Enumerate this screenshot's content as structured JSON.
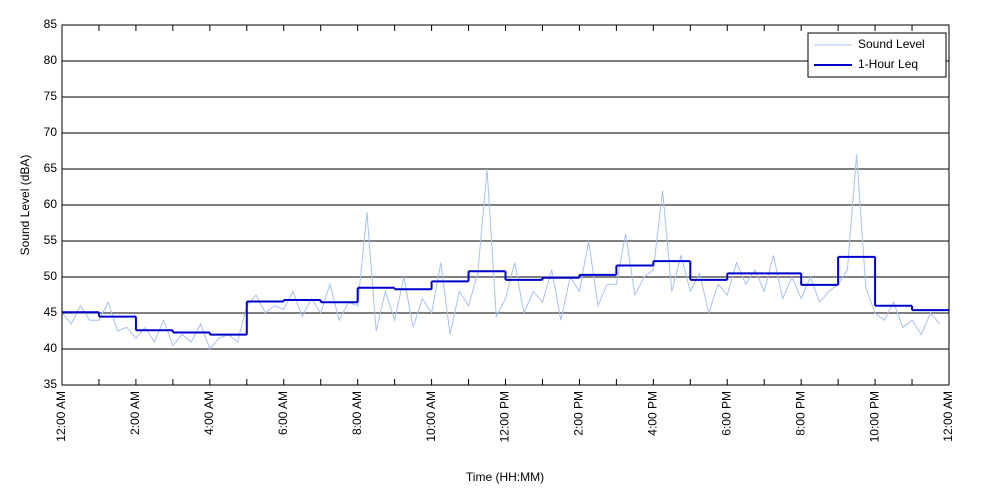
{
  "chart_data": {
    "type": "line",
    "xlabel": "Time (HH:MM)",
    "ylabel": "Sound Level (dBA)",
    "xlim": [
      0,
      24
    ],
    "ylim": [
      35,
      85
    ],
    "xticks": [
      {
        "value": 0,
        "label": "12:00 AM"
      },
      {
        "value": 2,
        "label": "2:00 AM"
      },
      {
        "value": 4,
        "label": "4:00 AM"
      },
      {
        "value": 6,
        "label": "6:00 AM"
      },
      {
        "value": 8,
        "label": "8:00 AM"
      },
      {
        "value": 10,
        "label": "10:00 AM"
      },
      {
        "value": 12,
        "label": "12:00 PM"
      },
      {
        "value": 14,
        "label": "2:00 PM"
      },
      {
        "value": 16,
        "label": "4:00 PM"
      },
      {
        "value": 18,
        "label": "6:00 PM"
      },
      {
        "value": 20,
        "label": "8:00 PM"
      },
      {
        "value": 22,
        "label": "10:00 PM"
      },
      {
        "value": 24,
        "label": "12:00 AM"
      }
    ],
    "xminorticks": [
      1,
      3,
      5,
      7,
      9,
      11,
      13,
      15,
      17,
      19,
      21,
      23
    ],
    "yticks": [
      35,
      40,
      45,
      50,
      55,
      60,
      65,
      70,
      75,
      80,
      85
    ],
    "grid": true,
    "legend": "upper right",
    "series": [
      {
        "name": "Sound Level",
        "color": "#a9c1f2",
        "style": "line",
        "x": [
          0,
          0.25,
          0.5,
          0.75,
          1,
          1.25,
          1.5,
          1.75,
          2,
          2.25,
          2.5,
          2.75,
          3,
          3.25,
          3.5,
          3.75,
          4,
          4.25,
          4.5,
          4.75,
          5,
          5.25,
          5.5,
          5.75,
          6,
          6.25,
          6.5,
          6.75,
          7,
          7.25,
          7.5,
          7.75,
          8,
          8.25,
          8.5,
          8.75,
          9,
          9.25,
          9.5,
          9.75,
          10,
          10.25,
          10.5,
          10.75,
          11,
          11.25,
          11.5,
          11.75,
          12,
          12.25,
          12.5,
          12.75,
          13,
          13.25,
          13.5,
          13.75,
          14,
          14.25,
          14.5,
          14.75,
          15,
          15.25,
          15.5,
          15.75,
          16,
          16.25,
          16.5,
          16.75,
          17,
          17.25,
          17.5,
          17.75,
          18,
          18.25,
          18.5,
          18.75,
          19,
          19.25,
          19.5,
          19.75,
          20,
          20.25,
          20.5,
          20.75,
          21,
          21.25,
          21.5,
          21.75,
          22,
          22.25,
          22.5,
          22.75,
          23,
          23.25,
          23.5,
          23.75
        ],
        "values": [
          45,
          43.5,
          46,
          44,
          44,
          46.5,
          42.5,
          43,
          41.5,
          43,
          41,
          44,
          40.5,
          42,
          41,
          43.5,
          40,
          41.5,
          42,
          41,
          46,
          47.5,
          45,
          46,
          45.5,
          48,
          44.5,
          47,
          45,
          49,
          44,
          46.5,
          46,
          59,
          42.5,
          48,
          44,
          50,
          43,
          47,
          45,
          52,
          42,
          48,
          46,
          50.5,
          65,
          44.5,
          47,
          52,
          45,
          48,
          46.5,
          51,
          44,
          50,
          48,
          55,
          46,
          49,
          49,
          56,
          47.5,
          50,
          51,
          62,
          48,
          53,
          48,
          50.5,
          45,
          49,
          47.5,
          52,
          49,
          51,
          48,
          53,
          47,
          50,
          47,
          50,
          46.5,
          48,
          49,
          51,
          67,
          48.5,
          45,
          44,
          46.5,
          43,
          44,
          42,
          45,
          43.5
        ]
      },
      {
        "name": "1-Hour Leq",
        "color": "#0000cc",
        "style": "step",
        "x": [
          0,
          1,
          2,
          3,
          4,
          5,
          6,
          7,
          8,
          9,
          10,
          11,
          12,
          13,
          14,
          15,
          16,
          17,
          18,
          19,
          20,
          21,
          22,
          23
        ],
        "values": [
          45.1,
          44.5,
          42.6,
          42.3,
          42,
          46.6,
          46.8,
          46.5,
          48.5,
          48.3,
          49.4,
          50.8,
          49.6,
          49.9,
          50.3,
          51.6,
          52.2,
          49.6,
          50.5,
          50.5,
          48.9,
          52.8,
          46,
          45.4
        ]
      }
    ]
  }
}
